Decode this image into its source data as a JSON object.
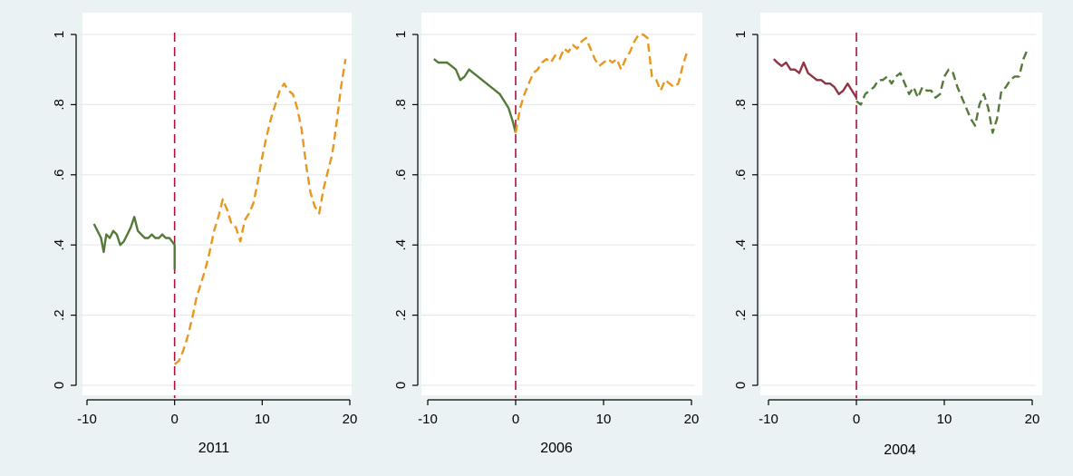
{
  "colors": {
    "background": "#eaf2f3",
    "plot_bg": "#ffffff",
    "grid": "#e6eced",
    "axis": "#000000",
    "event_line": "#a3163b",
    "pre_green": "#547a3a",
    "post_orange": "#e8961d",
    "pre_maroon": "#8e3443",
    "post_green": "#547a3a"
  },
  "chart_data": [
    {
      "type": "line",
      "title": "2011",
      "xlabel": "2011",
      "ylabel": "",
      "xlim": [
        -10,
        20
      ],
      "ylim": [
        0,
        1
      ],
      "xticks": [
        -10,
        0,
        10,
        20
      ],
      "xtick_labels": [
        "-10",
        "0",
        "10",
        "20"
      ],
      "yticks": [
        0,
        0.2,
        0.4,
        0.6,
        0.8,
        1
      ],
      "ytick_labels": [
        "0",
        ".2",
        ".4",
        ".6",
        ".8",
        "1"
      ],
      "grid": true,
      "event_line_x": 0,
      "series": [
        {
          "style": "solid",
          "color": "#547a3a",
          "x": [
            -9.2,
            -8.8,
            -8.4,
            -8.1,
            -7.8,
            -7.4,
            -7.0,
            -6.6,
            -6.2,
            -5.8,
            -5.4,
            -5.0,
            -4.6,
            -4.2,
            -3.8,
            -3.4,
            -3.0,
            -2.6,
            -2.2,
            -1.8,
            -1.4,
            -1.0,
            -0.6,
            -0.3,
            0.0,
            0.0
          ],
          "y": [
            0.46,
            0.44,
            0.42,
            0.38,
            0.43,
            0.42,
            0.44,
            0.43,
            0.4,
            0.41,
            0.43,
            0.45,
            0.48,
            0.44,
            0.43,
            0.42,
            0.42,
            0.43,
            0.42,
            0.42,
            0.43,
            0.42,
            0.42,
            0.41,
            0.4,
            0.33
          ]
        },
        {
          "style": "dashed",
          "color": "#e8961d",
          "x": [
            0,
            0.5,
            1.0,
            1.5,
            2.0,
            2.5,
            3.0,
            3.5,
            4.0,
            4.5,
            5.0,
            5.5,
            6.0,
            6.5,
            7.0,
            7.5,
            8.0,
            8.5,
            9.0,
            9.5,
            10.0,
            10.5,
            11.0,
            11.5,
            12.0,
            12.5,
            13.0,
            13.5,
            14.0,
            14.5,
            15.0,
            15.5,
            16.0,
            16.5,
            17.0,
            17.5,
            18.0,
            18.5,
            19.0,
            19.5
          ],
          "y": [
            0.06,
            0.07,
            0.1,
            0.14,
            0.19,
            0.25,
            0.29,
            0.33,
            0.38,
            0.44,
            0.48,
            0.53,
            0.5,
            0.46,
            0.45,
            0.41,
            0.47,
            0.49,
            0.52,
            0.58,
            0.65,
            0.71,
            0.76,
            0.8,
            0.84,
            0.86,
            0.84,
            0.83,
            0.79,
            0.73,
            0.63,
            0.55,
            0.51,
            0.49,
            0.56,
            0.61,
            0.66,
            0.75,
            0.85,
            0.93
          ]
        }
      ]
    },
    {
      "type": "line",
      "title": "2006",
      "xlabel": "2006",
      "ylabel": "",
      "xlim": [
        -10,
        20
      ],
      "ylim": [
        0,
        1
      ],
      "xticks": [
        -10,
        0,
        10,
        20
      ],
      "xtick_labels": [
        "-10",
        "0",
        "10",
        "20"
      ],
      "yticks": [
        0,
        0.2,
        0.4,
        0.6,
        0.8,
        1
      ],
      "ytick_labels": [
        "0",
        ".2",
        ".4",
        ".6",
        ".8",
        "1"
      ],
      "grid": true,
      "event_line_x": 0,
      "series": [
        {
          "style": "solid",
          "color": "#547a3a",
          "x": [
            -9.3,
            -8.8,
            -8.3,
            -7.8,
            -7.3,
            -6.8,
            -6.3,
            -5.8,
            -5.3,
            -4.8,
            -4.3,
            -3.8,
            -3.3,
            -2.8,
            -2.3,
            -1.8,
            -1.3,
            -0.8,
            -0.3,
            0.0
          ],
          "y": [
            0.93,
            0.92,
            0.92,
            0.92,
            0.91,
            0.9,
            0.87,
            0.88,
            0.9,
            0.89,
            0.88,
            0.87,
            0.86,
            0.85,
            0.84,
            0.83,
            0.81,
            0.79,
            0.75,
            0.72
          ]
        },
        {
          "style": "dashed",
          "color": "#e8961d",
          "x": [
            0,
            0.5,
            1.0,
            1.5,
            2.0,
            2.5,
            3.0,
            3.5,
            4.0,
            4.5,
            5.0,
            5.5,
            6.0,
            6.5,
            7.0,
            7.5,
            8.0,
            8.5,
            9.0,
            9.5,
            10.0,
            10.5,
            11.0,
            11.5,
            12.0,
            12.5,
            13.0,
            13.5,
            14.0,
            14.5,
            15.0,
            15.5,
            16.0,
            16.5,
            17.0,
            17.5,
            18.0,
            18.5,
            19.0,
            19.5
          ],
          "y": [
            0.72,
            0.79,
            0.83,
            0.86,
            0.89,
            0.9,
            0.92,
            0.93,
            0.92,
            0.94,
            0.93,
            0.96,
            0.95,
            0.97,
            0.96,
            0.98,
            0.99,
            0.96,
            0.93,
            0.91,
            0.92,
            0.93,
            0.92,
            0.93,
            0.9,
            0.93,
            0.95,
            0.98,
            1.0,
            1.0,
            0.99,
            0.88,
            0.87,
            0.84,
            0.87,
            0.86,
            0.85,
            0.86,
            0.91,
            0.95
          ]
        }
      ]
    },
    {
      "type": "line",
      "title": "2004",
      "xlabel": "2004",
      "ylabel": "",
      "xlim": [
        -10,
        20
      ],
      "ylim": [
        0,
        1
      ],
      "xticks": [
        -10,
        0,
        10,
        20
      ],
      "xtick_labels": [
        "-10",
        "0",
        "10",
        "20"
      ],
      "yticks": [
        0,
        0.2,
        0.4,
        0.6,
        0.8,
        1
      ],
      "ytick_labels": [
        "0",
        ".2",
        ".4",
        ".6",
        ".8",
        "1"
      ],
      "grid": true,
      "event_line_x": 0,
      "series": [
        {
          "style": "solid",
          "color": "#8e3443",
          "x": [
            -9.4,
            -9.0,
            -8.5,
            -8.0,
            -7.5,
            -7.0,
            -6.5,
            -6.0,
            -5.5,
            -5.0,
            -4.5,
            -4.0,
            -3.5,
            -3.0,
            -2.5,
            -2.0,
            -1.5,
            -1.0,
            -0.5,
            0.0
          ],
          "y": [
            0.93,
            0.92,
            0.91,
            0.92,
            0.9,
            0.9,
            0.89,
            0.92,
            0.89,
            0.88,
            0.87,
            0.87,
            0.86,
            0.86,
            0.85,
            0.83,
            0.84,
            0.86,
            0.84,
            0.82
          ]
        },
        {
          "style": "dashed",
          "color": "#547a3a",
          "x": [
            0,
            0.5,
            1.0,
            1.5,
            2.0,
            2.5,
            3.0,
            3.5,
            4.0,
            4.5,
            5.0,
            5.5,
            6.0,
            6.5,
            7.0,
            7.5,
            8.0,
            8.5,
            9.0,
            9.5,
            10.0,
            10.5,
            11.0,
            11.5,
            12.0,
            12.5,
            13.0,
            13.5,
            14.0,
            14.5,
            15.0,
            15.5,
            16.0,
            16.5,
            17.0,
            17.5,
            18.0,
            18.5,
            19.0,
            19.5
          ],
          "y": [
            0.81,
            0.8,
            0.83,
            0.84,
            0.85,
            0.87,
            0.87,
            0.88,
            0.86,
            0.88,
            0.89,
            0.86,
            0.83,
            0.85,
            0.82,
            0.85,
            0.84,
            0.84,
            0.82,
            0.83,
            0.88,
            0.9,
            0.89,
            0.85,
            0.82,
            0.79,
            0.76,
            0.74,
            0.8,
            0.83,
            0.79,
            0.72,
            0.76,
            0.84,
            0.85,
            0.87,
            0.88,
            0.88,
            0.93,
            0.96
          ]
        }
      ]
    }
  ]
}
